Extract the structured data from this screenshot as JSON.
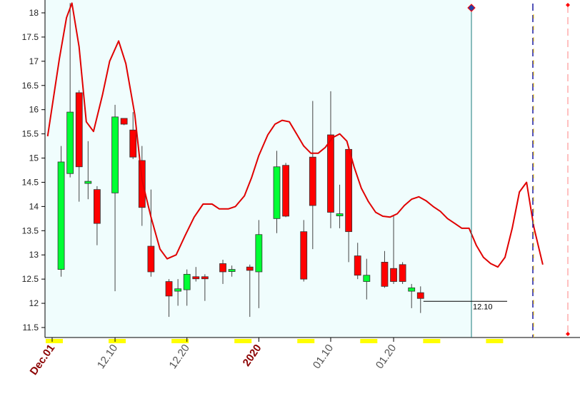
{
  "chart_data": {
    "type": "candlestick",
    "ylim": [
      11.25,
      18.2
    ],
    "y_ticks": [
      "11.5",
      "12",
      "12.5",
      "13",
      "13.5",
      "14",
      "14.5",
      "15",
      "15.5",
      "16",
      "16.5",
      "17",
      "17.5",
      "18"
    ],
    "x_ticks": [
      {
        "label": "Dec.01",
        "x": 0,
        "major": true
      },
      {
        "label": "12.10",
        "x": 7,
        "major": false
      },
      {
        "label": "12.20",
        "x": 15,
        "major": false
      },
      {
        "label": "2020",
        "x": 23,
        "major": true
      },
      {
        "label": "01.10",
        "x": 31,
        "major": false
      },
      {
        "label": "01.20",
        "x": 38,
        "major": false
      }
    ],
    "candles": [
      {
        "x": 1,
        "open": 12.7,
        "high": 15.25,
        "low": 12.55,
        "close": 14.92
      },
      {
        "x": 2,
        "open": 14.68,
        "high": 18.2,
        "low": 14.6,
        "close": 15.95
      },
      {
        "x": 3,
        "open": 16.35,
        "high": 16.4,
        "low": 14.1,
        "close": 14.82
      },
      {
        "x": 4,
        "open": 14.48,
        "high": 15.35,
        "low": 14.15,
        "close": 14.52
      },
      {
        "x": 5,
        "open": 14.35,
        "high": 14.42,
        "low": 13.2,
        "close": 13.65
      },
      {
        "x": 7,
        "open": 14.28,
        "high": 16.1,
        "low": 12.25,
        "close": 15.85
      },
      {
        "x": 8,
        "open": 15.82,
        "high": 15.82,
        "low": 15.68,
        "close": 15.7
      },
      {
        "x": 9,
        "open": 15.58,
        "high": 15.95,
        "low": 14.98,
        "close": 15.02
      },
      {
        "x": 10,
        "open": 14.95,
        "high": 15.25,
        "low": 13.6,
        "close": 13.98
      },
      {
        "x": 11,
        "open": 13.18,
        "high": 14.35,
        "low": 12.55,
        "close": 12.65
      },
      {
        "x": 13,
        "open": 12.45,
        "high": 12.5,
        "low": 11.72,
        "close": 12.15
      },
      {
        "x": 14,
        "open": 12.25,
        "high": 12.5,
        "low": 11.95,
        "close": 12.3
      },
      {
        "x": 15,
        "open": 12.28,
        "high": 12.7,
        "low": 11.95,
        "close": 12.6
      },
      {
        "x": 16,
        "open": 12.55,
        "high": 12.75,
        "low": 12.45,
        "close": 12.52
      },
      {
        "x": 17,
        "open": 12.55,
        "high": 12.6,
        "low": 12.05,
        "close": 12.52
      },
      {
        "x": 19,
        "open": 12.82,
        "high": 12.9,
        "low": 12.4,
        "close": 12.65
      },
      {
        "x": 20,
        "open": 12.68,
        "high": 12.78,
        "low": 12.55,
        "close": 12.7
      },
      {
        "x": 22,
        "open": 12.75,
        "high": 12.8,
        "low": 11.72,
        "close": 12.68
      },
      {
        "x": 23,
        "open": 12.65,
        "high": 13.72,
        "low": 11.9,
        "close": 13.42
      },
      {
        "x": 25,
        "open": 13.75,
        "high": 15.15,
        "low": 13.45,
        "close": 14.82
      },
      {
        "x": 26,
        "open": 14.85,
        "high": 14.9,
        "low": 13.78,
        "close": 13.8
      },
      {
        "x": 28,
        "open": 13.48,
        "high": 13.72,
        "low": 12.45,
        "close": 12.5
      },
      {
        "x": 29,
        "open": 15.02,
        "high": 16.18,
        "low": 13.12,
        "close": 14.02
      },
      {
        "x": 31,
        "open": 15.48,
        "high": 16.38,
        "low": 13.55,
        "close": 13.88
      },
      {
        "x": 32,
        "open": 13.82,
        "high": 14.45,
        "low": 13.55,
        "close": 13.85
      },
      {
        "x": 33,
        "open": 15.18,
        "high": 15.22,
        "low": 12.85,
        "close": 13.48
      },
      {
        "x": 34,
        "open": 12.98,
        "high": 13.25,
        "low": 12.5,
        "close": 12.58
      },
      {
        "x": 35,
        "open": 12.45,
        "high": 12.92,
        "low": 12.08,
        "close": 12.58
      },
      {
        "x": 37,
        "open": 12.85,
        "high": 13.08,
        "low": 12.32,
        "close": 12.35
      },
      {
        "x": 38,
        "open": 12.72,
        "high": 13.82,
        "low": 12.4,
        "close": 12.45
      },
      {
        "x": 39,
        "open": 12.8,
        "high": 12.85,
        "low": 12.4,
        "close": 12.45
      },
      {
        "x": 40,
        "open": 12.25,
        "high": 12.4,
        "low": 11.9,
        "close": 12.32
      },
      {
        "x": 41,
        "open": 12.22,
        "high": 12.35,
        "low": 11.8,
        "close": 12.1
      }
    ],
    "line": {
      "color": "#e00000",
      "points": [
        [
          -0.5,
          15.45
        ],
        [
          0.8,
          17.05
        ],
        [
          1.6,
          17.9
        ],
        [
          2.2,
          18.2
        ],
        [
          3.0,
          17.3
        ],
        [
          3.8,
          15.75
        ],
        [
          4.6,
          15.55
        ],
        [
          5.6,
          16.3
        ],
        [
          6.4,
          17.0
        ],
        [
          7.4,
          17.42
        ],
        [
          8.2,
          16.95
        ],
        [
          9.2,
          15.9
        ],
        [
          10.0,
          14.55
        ],
        [
          11.0,
          13.78
        ],
        [
          12.0,
          13.12
        ],
        [
          12.8,
          12.92
        ],
        [
          13.8,
          13.0
        ],
        [
          14.8,
          13.4
        ],
        [
          15.8,
          13.78
        ],
        [
          16.8,
          14.05
        ],
        [
          17.8,
          14.05
        ],
        [
          18.6,
          13.95
        ],
        [
          19.6,
          13.95
        ],
        [
          20.4,
          14.0
        ],
        [
          21.4,
          14.22
        ],
        [
          22.2,
          14.6
        ],
        [
          23.0,
          15.05
        ],
        [
          24.0,
          15.48
        ],
        [
          24.8,
          15.7
        ],
        [
          25.6,
          15.78
        ],
        [
          26.4,
          15.75
        ],
        [
          27.2,
          15.5
        ],
        [
          28.0,
          15.25
        ],
        [
          28.8,
          15.1
        ],
        [
          29.6,
          15.1
        ],
        [
          30.4,
          15.22
        ],
        [
          31.2,
          15.42
        ],
        [
          32.0,
          15.5
        ],
        [
          32.8,
          15.35
        ],
        [
          33.6,
          14.82
        ],
        [
          34.4,
          14.38
        ],
        [
          35.2,
          14.1
        ],
        [
          36.0,
          13.88
        ],
        [
          36.8,
          13.8
        ],
        [
          37.6,
          13.78
        ],
        [
          38.4,
          13.85
        ],
        [
          39.2,
          14.02
        ],
        [
          40.0,
          14.15
        ],
        [
          40.8,
          14.2
        ],
        [
          41.6,
          14.12
        ],
        [
          42.4,
          14.0
        ],
        [
          43.2,
          13.9
        ],
        [
          44.0,
          13.75
        ],
        [
          44.8,
          13.65
        ],
        [
          45.6,
          13.55
        ],
        [
          46.4,
          13.55
        ],
        [
          47.2,
          13.2
        ],
        [
          48.0,
          12.95
        ],
        [
          48.8,
          12.82
        ],
        [
          49.6,
          12.75
        ],
        [
          50.4,
          12.95
        ],
        [
          51.2,
          13.55
        ],
        [
          52.0,
          14.3
        ],
        [
          52.8,
          14.5
        ],
        [
          53.6,
          13.58
        ],
        [
          54.6,
          12.8
        ]
      ]
    },
    "last_price_label": "12.10",
    "last_price": 12.1,
    "last_x": 41,
    "colors": {
      "up": "#00ff33",
      "down": "#ff0000",
      "background_shaded": "#f0fdfd",
      "current_line": "#1a7a7a",
      "marker": "#2244aa"
    }
  }
}
